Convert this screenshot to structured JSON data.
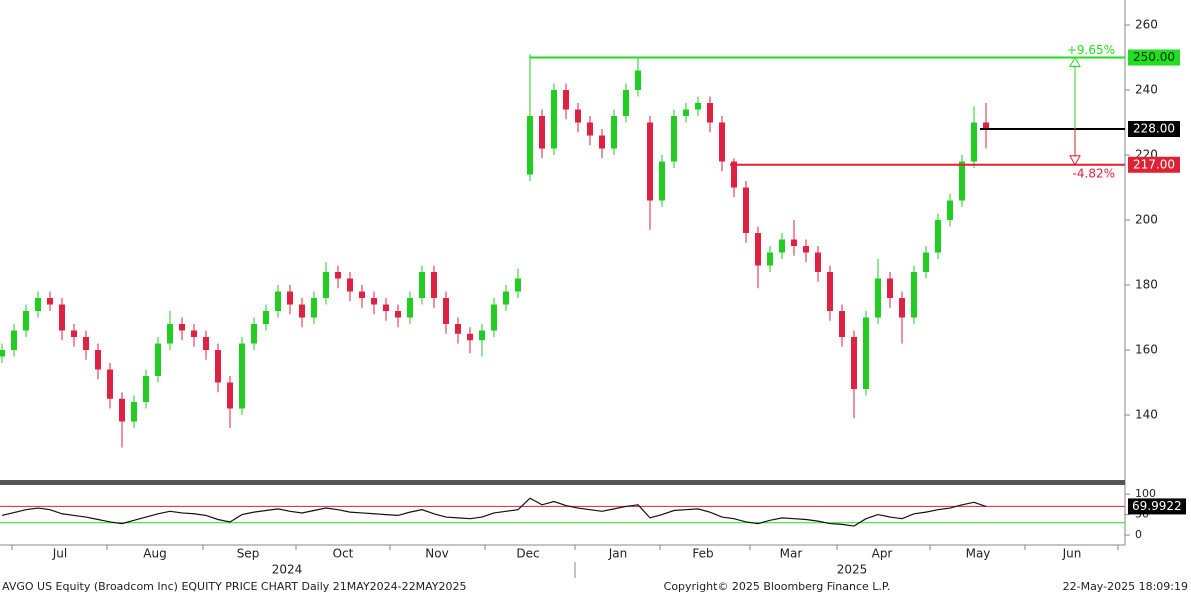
{
  "chart_data": {
    "type": "candlestick",
    "ylim": [
      120,
      267.7
    ],
    "yticks": [
      140,
      160,
      180,
      200,
      220,
      240,
      260
    ],
    "up_color": "#22cc22",
    "down_color": "#dd2244",
    "candles": [
      [
        158,
        162,
        156,
        160
      ],
      [
        160,
        168,
        158,
        166
      ],
      [
        166,
        174,
        164,
        172
      ],
      [
        172,
        178,
        170,
        176
      ],
      [
        176,
        178,
        172,
        174
      ],
      [
        174,
        176,
        163,
        166
      ],
      [
        166,
        168,
        161,
        164
      ],
      [
        164,
        166,
        157,
        160
      ],
      [
        160,
        162,
        151,
        154
      ],
      [
        154,
        156,
        142,
        145
      ],
      [
        145,
        147,
        130,
        138
      ],
      [
        138,
        146,
        136,
        144
      ],
      [
        144,
        154,
        142,
        152
      ],
      [
        152,
        164,
        150,
        162
      ],
      [
        162,
        172,
        160,
        168
      ],
      [
        168,
        170,
        163,
        166
      ],
      [
        166,
        168,
        161,
        164
      ],
      [
        164,
        166,
        157,
        160
      ],
      [
        160,
        162,
        147,
        150
      ],
      [
        150,
        152,
        136,
        142
      ],
      [
        142,
        164,
        140,
        162
      ],
      [
        162,
        170,
        160,
        168
      ],
      [
        168,
        174,
        166,
        172
      ],
      [
        172,
        180,
        170,
        178
      ],
      [
        178,
        180,
        171,
        174
      ],
      [
        174,
        176,
        167,
        170
      ],
      [
        170,
        178,
        168,
        176
      ],
      [
        176,
        187,
        174,
        184
      ],
      [
        184,
        186,
        179,
        182
      ],
      [
        182,
        184,
        175,
        178
      ],
      [
        178,
        180,
        173,
        176
      ],
      [
        176,
        178,
        171,
        174
      ],
      [
        174,
        176,
        169,
        172
      ],
      [
        172,
        174,
        167,
        170
      ],
      [
        170,
        178,
        168,
        176
      ],
      [
        176,
        186,
        174,
        184
      ],
      [
        184,
        186,
        173,
        176
      ],
      [
        176,
        178,
        165,
        168
      ],
      [
        168,
        170,
        162,
        165
      ],
      [
        165,
        167,
        159,
        163
      ],
      [
        163,
        168,
        158,
        166
      ],
      [
        166,
        176,
        164,
        174
      ],
      [
        174,
        180,
        172,
        178
      ],
      [
        178,
        185,
        176,
        182
      ],
      [
        214,
        251,
        212,
        232
      ],
      [
        232,
        234,
        219,
        222
      ],
      [
        222,
        242,
        220,
        240
      ],
      [
        240,
        242,
        231,
        234
      ],
      [
        234,
        236,
        227,
        230
      ],
      [
        230,
        232,
        223,
        226
      ],
      [
        226,
        228,
        219,
        222
      ],
      [
        222,
        234,
        220,
        232
      ],
      [
        232,
        242,
        230,
        240
      ],
      [
        240,
        250,
        238,
        246
      ],
      [
        230,
        232,
        197,
        206
      ],
      [
        206,
        220,
        204,
        218
      ],
      [
        218,
        234,
        216,
        232
      ],
      [
        232,
        236,
        230,
        234
      ],
      [
        234,
        238,
        232,
        236
      ],
      [
        236,
        238,
        227,
        230
      ],
      [
        230,
        232,
        215,
        218
      ],
      [
        218,
        219,
        207,
        210
      ],
      [
        210,
        212,
        193,
        196
      ],
      [
        196,
        198,
        179,
        186
      ],
      [
        186,
        192,
        184,
        190
      ],
      [
        190,
        196,
        188,
        194
      ],
      [
        194,
        200,
        189,
        192
      ],
      [
        192,
        194,
        187,
        190
      ],
      [
        190,
        192,
        181,
        184
      ],
      [
        184,
        186,
        169,
        172
      ],
      [
        172,
        174,
        161,
        164
      ],
      [
        164,
        166,
        139,
        148
      ],
      [
        148,
        172,
        146,
        170
      ],
      [
        170,
        188,
        168,
        182
      ],
      [
        182,
        184,
        173,
        176
      ],
      [
        176,
        178,
        162,
        170
      ],
      [
        170,
        186,
        168,
        184
      ],
      [
        184,
        192,
        182,
        190
      ],
      [
        190,
        202,
        188,
        200
      ],
      [
        200,
        208,
        198,
        206
      ],
      [
        206,
        220,
        204,
        218
      ],
      [
        218,
        235,
        216,
        230
      ],
      [
        230,
        236,
        222,
        228
      ]
    ],
    "levels": [
      {
        "value": 250,
        "label": "250.00",
        "change": "+9.65%",
        "color": "#22dd22"
      },
      {
        "value": 228,
        "label": "228.00",
        "color": "#000000"
      },
      {
        "value": 217,
        "label": "217.00",
        "change": "-4.82%",
        "color": "#dd2233"
      }
    ],
    "rsi": [
      48,
      55,
      62,
      66,
      62,
      52,
      48,
      44,
      38,
      32,
      28,
      36,
      44,
      52,
      58,
      54,
      52,
      48,
      38,
      32,
      50,
      56,
      60,
      64,
      58,
      54,
      60,
      66,
      62,
      56,
      54,
      52,
      50,
      48,
      56,
      62,
      52,
      44,
      42,
      40,
      44,
      54,
      58,
      62,
      90,
      74,
      82,
      72,
      66,
      62,
      58,
      64,
      70,
      74,
      42,
      50,
      60,
      62,
      64,
      56,
      44,
      40,
      32,
      28,
      36,
      42,
      40,
      38,
      34,
      28,
      26,
      22,
      40,
      50,
      44,
      40,
      52,
      56,
      62,
      66,
      74,
      80,
      70
    ],
    "rsi_ylim": [
      -17,
      115
    ],
    "rsi_yticks": [
      0,
      50,
      100
    ],
    "rsi_levels": [
      70,
      30
    ],
    "rsi_last": {
      "value": 69.9922,
      "label": "69.9922"
    },
    "months": [
      "Jul",
      "Aug",
      "Sep",
      "Oct",
      "Nov",
      "Dec",
      "Jan",
      "Feb",
      "Mar",
      "Apr",
      "May",
      "Jun"
    ],
    "years": [
      "2024",
      "2025"
    ],
    "footer_title": "AVGO US Equity (Broadcom Inc) EQUITY PRICE CHART  Daily 21MAY2024-22MAY2025",
    "copyright": "Copyright© 2025 Bloomberg Finance L.P.",
    "timestamp": "22-May-2025 18:09:19"
  }
}
